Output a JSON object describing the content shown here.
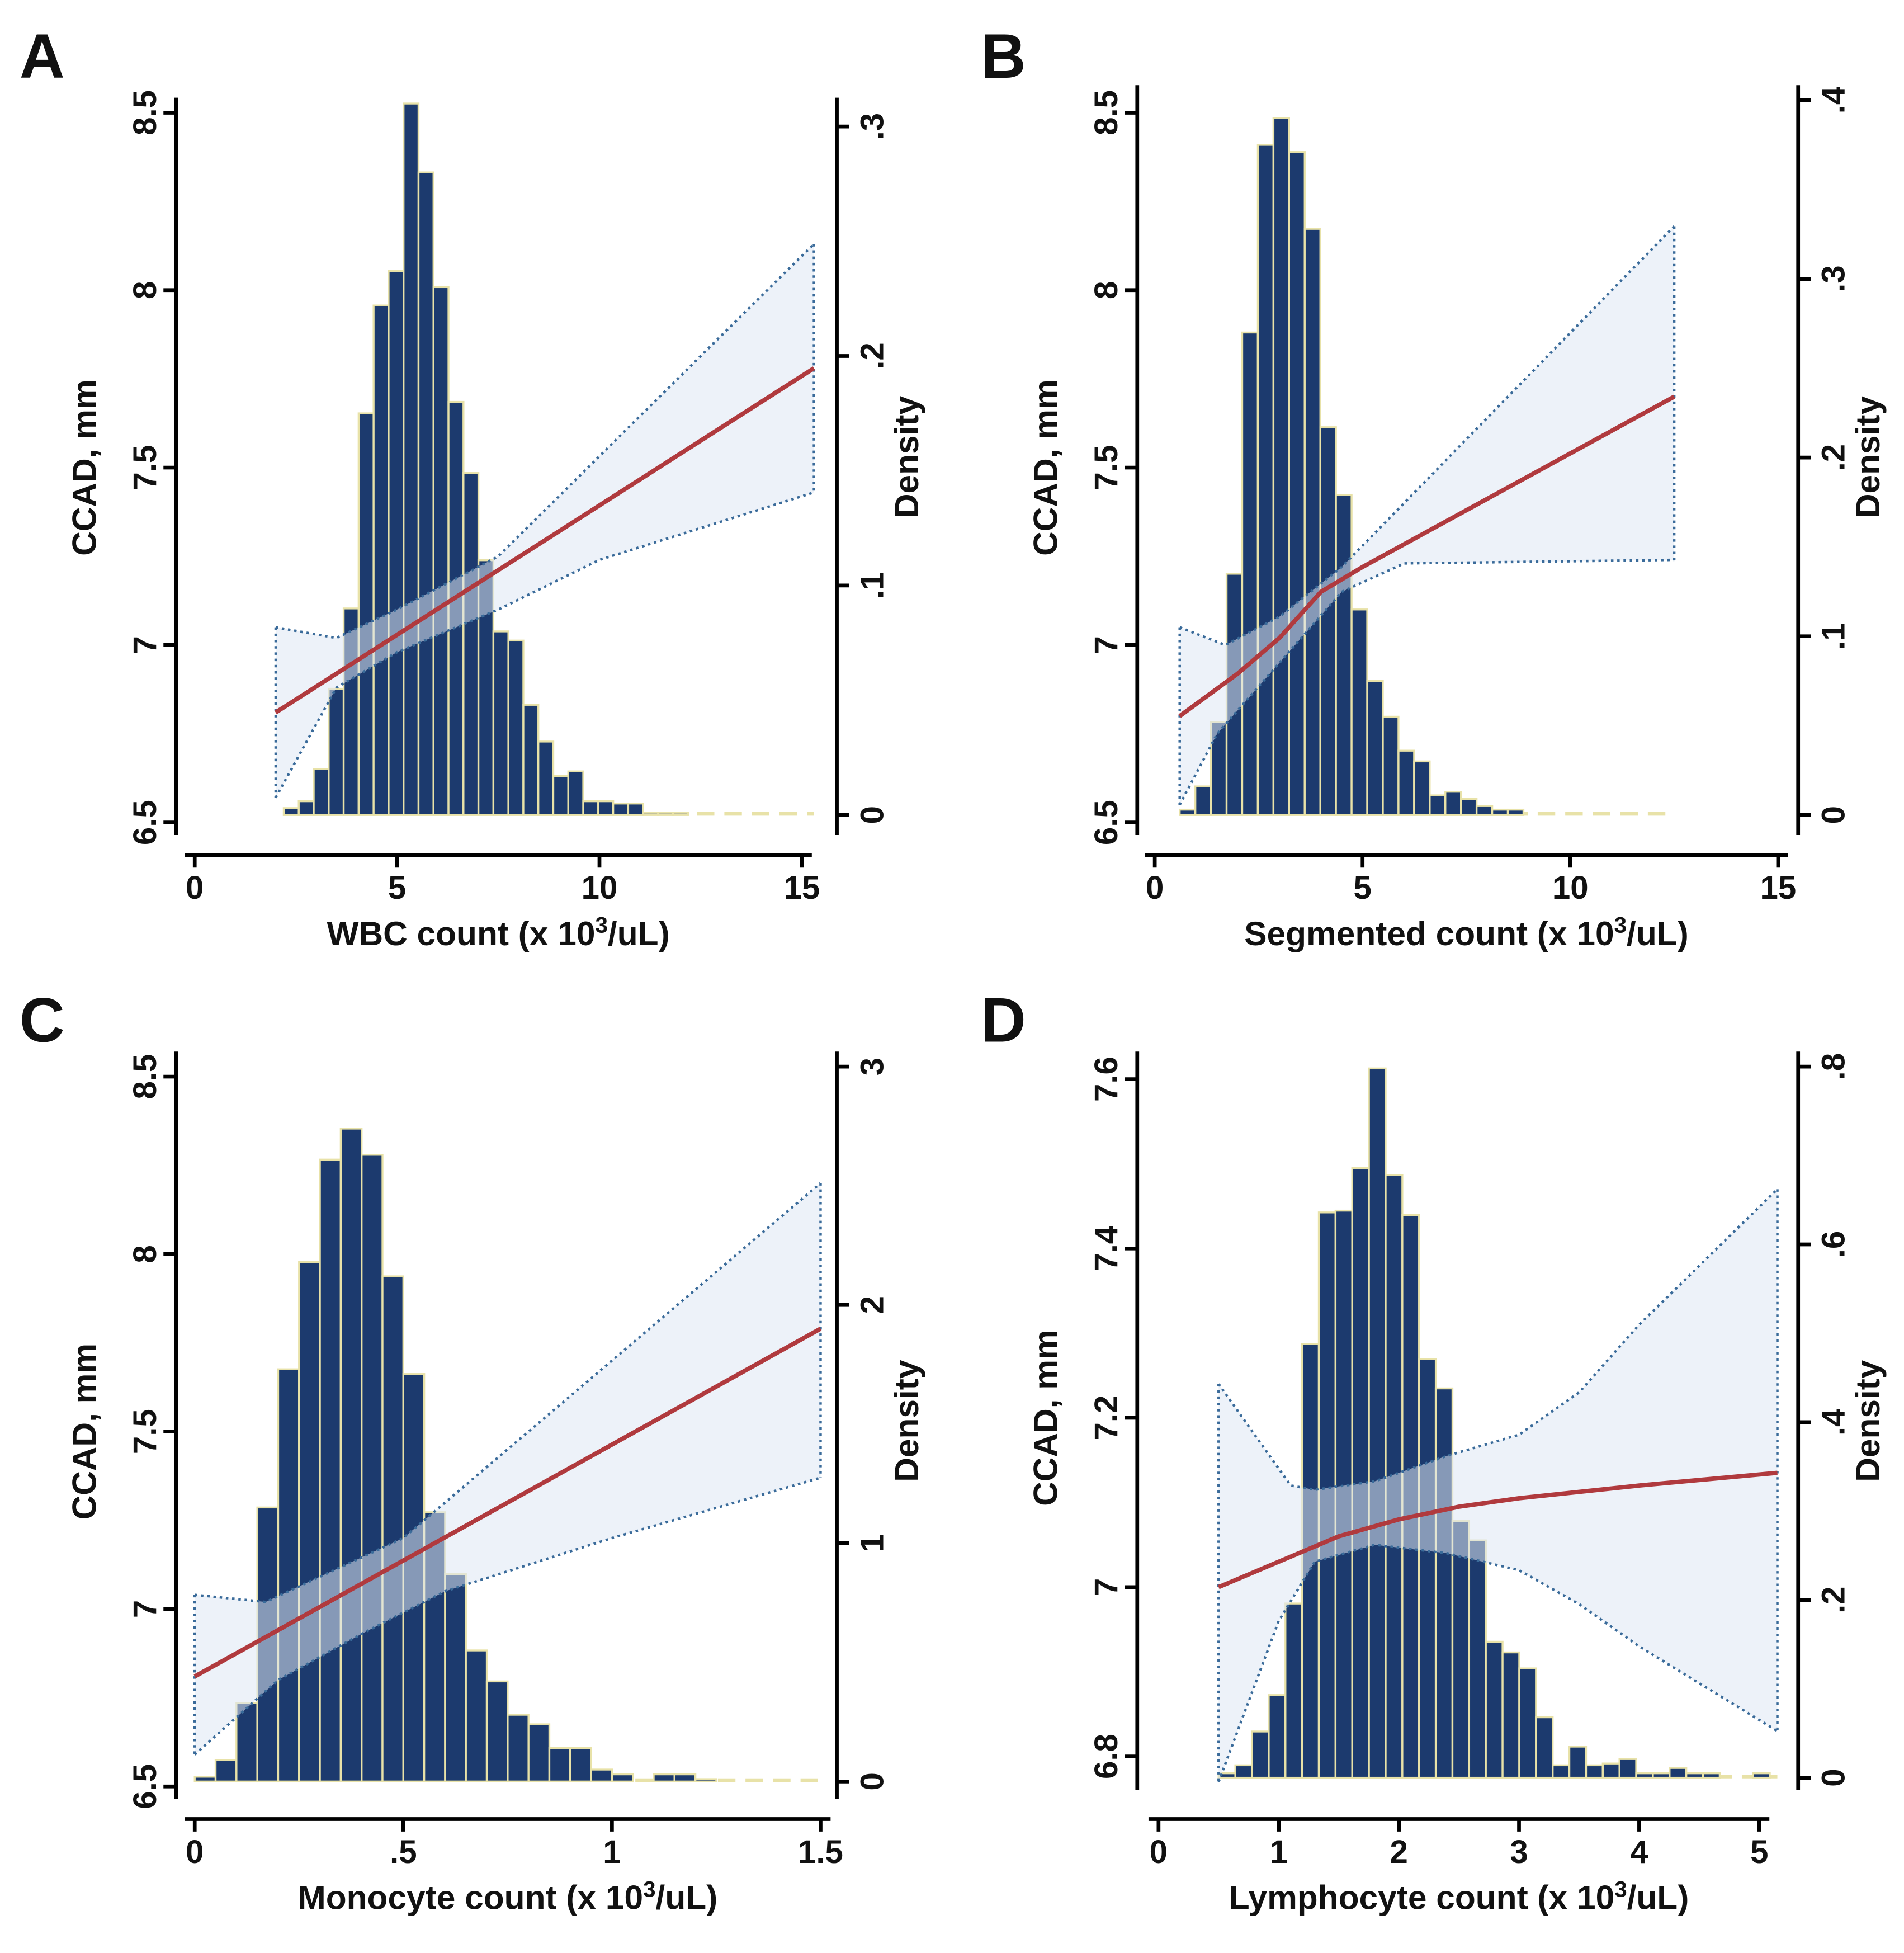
{
  "chart_data": [
    {
      "panel": "A",
      "type": "bar+line",
      "xlabel": {
        "pre": "WBC count (x 10",
        "sup": "3",
        "post": "/uL)"
      },
      "ylabel": "CCAD, mm",
      "y2label": "Density",
      "xlim": [
        0,
        15
      ],
      "xticks": [
        "0",
        "5",
        "10",
        "15"
      ],
      "xtick_values": [
        0,
        5,
        10,
        15
      ],
      "ylim": [
        6.5,
        8.5
      ],
      "yticks": [
        "6.5",
        "7",
        "7.5",
        "8",
        "8.5"
      ],
      "ytick_values": [
        6.5,
        7,
        7.5,
        8,
        8.5
      ],
      "y2lim": [
        0,
        0.3
      ],
      "y2ticks": [
        "0",
        ".1",
        ".2",
        ".3"
      ],
      "y2tick_values": [
        0,
        0.1,
        0.2,
        0.3
      ],
      "histogram": {
        "bin_start": 2.2,
        "bin_width": 0.37,
        "range_end": 15.3,
        "density": [
          0.003,
          0.006,
          0.02,
          0.055,
          0.09,
          0.175,
          0.222,
          0.237,
          0.31,
          0.28,
          0.23,
          0.18,
          0.149,
          0.111,
          0.08,
          0.076,
          0.048,
          0.032,
          0.017,
          0.019,
          0.006,
          0.006,
          0.005,
          0.005,
          0.001,
          0.001,
          0.001
        ]
      },
      "fit": [
        [
          2,
          6.81
        ],
        [
          15.3,
          7.78
        ]
      ],
      "ci_upper": [
        [
          2,
          7.05
        ],
        [
          3.5,
          7.02
        ],
        [
          5,
          7.1
        ],
        [
          7.5,
          7.25
        ],
        [
          15.3,
          8.13
        ]
      ],
      "ci_lower": [
        [
          2,
          6.57
        ],
        [
          3.5,
          6.88
        ],
        [
          5,
          6.98
        ],
        [
          7.5,
          7.1
        ],
        [
          10,
          7.24
        ],
        [
          15.3,
          7.43
        ]
      ]
    },
    {
      "panel": "B",
      "type": "bar+line",
      "xlabel": {
        "pre": "Segmented count (x 10",
        "sup": "3",
        "post": "/uL)"
      },
      "ylabel": "CCAD, mm",
      "y2label": "Density",
      "xlim": [
        0,
        15
      ],
      "xticks": [
        "0",
        "5",
        "10",
        "15"
      ],
      "xtick_values": [
        0,
        5,
        10,
        15
      ],
      "ylim": [
        6.5,
        8.5
      ],
      "yticks": [
        "6.5",
        "7",
        "7.5",
        "8",
        "8.5"
      ],
      "ytick_values": [
        6.5,
        7,
        7.5,
        8,
        8.5
      ],
      "y2lim": [
        0,
        0.4
      ],
      "y2ticks": [
        "0",
        ".1",
        ".2",
        ".3",
        ".4"
      ],
      "y2tick_values": [
        0,
        0.1,
        0.2,
        0.3,
        0.4
      ],
      "histogram": {
        "bin_start": 0.6,
        "bin_width": 0.376,
        "range_end": 12.5,
        "density": [
          0.003,
          0.016,
          0.052,
          0.135,
          0.27,
          0.375,
          0.39,
          0.371,
          0.328,
          0.217,
          0.179,
          0.115,
          0.075,
          0.055,
          0.036,
          0.03,
          0.011,
          0.013,
          0.009,
          0.005,
          0.003,
          0.003
        ]
      },
      "fit": [
        [
          0.6,
          6.8
        ],
        [
          2,
          6.92
        ],
        [
          3,
          7.02
        ],
        [
          4,
          7.15
        ],
        [
          5,
          7.22
        ],
        [
          12.5,
          7.7
        ]
      ],
      "ci_upper": [
        [
          0.6,
          7.05
        ],
        [
          1.7,
          7.0
        ],
        [
          3,
          7.08
        ],
        [
          4.5,
          7.22
        ],
        [
          12.5,
          8.18
        ]
      ],
      "ci_lower": [
        [
          0.6,
          6.55
        ],
        [
          1.5,
          6.75
        ],
        [
          3,
          6.95
        ],
        [
          4.5,
          7.15
        ],
        [
          6,
          7.23
        ],
        [
          12.5,
          7.24
        ]
      ]
    },
    {
      "panel": "C",
      "type": "bar+line",
      "xlabel": {
        "pre": "Monocyte count (x 10",
        "sup": "3",
        "post": "/uL)"
      },
      "ylabel": "CCAD, mm",
      "y2label": "Density",
      "xlim": [
        0,
        1.5
      ],
      "xticks": [
        "0",
        ".5",
        "1",
        "1.5"
      ],
      "xtick_values": [
        0,
        0.5,
        1,
        1.5
      ],
      "ylim": [
        6.5,
        8.5
      ],
      "yticks": [
        "6.5",
        "7",
        "7.5",
        "8",
        "8.5"
      ],
      "ytick_values": [
        6.5,
        7,
        7.5,
        8,
        8.5
      ],
      "y2lim": [
        0,
        3
      ],
      "y2ticks": [
        "0",
        "1",
        "2",
        "3"
      ],
      "y2tick_values": [
        0,
        1,
        2,
        3
      ],
      "histogram": {
        "bin_start": 0,
        "bin_width": 0.05,
        "range_end": 1.5,
        "density": [
          0.02,
          0.09,
          0.33,
          1.15,
          1.73,
          2.18,
          2.61,
          2.74,
          2.63,
          2.12,
          1.71,
          1.13,
          0.87,
          0.55,
          0.42,
          0.28,
          0.24,
          0.14,
          0.14,
          0.05,
          0.03,
          0,
          0.03,
          0.03,
          0.01
        ]
      },
      "fit": [
        [
          0,
          6.81
        ],
        [
          1.5,
          7.79
        ]
      ],
      "ci_upper": [
        [
          0,
          7.04
        ],
        [
          0.17,
          7.02
        ],
        [
          0.5,
          7.2
        ],
        [
          1.5,
          8.2
        ]
      ],
      "ci_lower": [
        [
          0,
          6.59
        ],
        [
          0.2,
          6.8
        ],
        [
          0.4,
          6.93
        ],
        [
          0.6,
          7.05
        ],
        [
          1,
          7.2
        ],
        [
          1.5,
          7.37
        ]
      ]
    },
    {
      "panel": "D",
      "type": "bar+line",
      "xlabel": {
        "pre": "Lymphocyte count (x 10",
        "sup": "3",
        "post": "/uL)"
      },
      "ylabel": "CCAD, mm",
      "y2label": "Density",
      "xlim": [
        0,
        5
      ],
      "xticks": [
        "0",
        "1",
        "2",
        "3",
        "4",
        "5"
      ],
      "xtick_values": [
        0,
        1,
        2,
        3,
        4,
        5
      ],
      "ylim": [
        6.8,
        7.6
      ],
      "yticks": [
        "6.8",
        "7",
        "7.2",
        "7.4",
        "7.6"
      ],
      "ytick_values": [
        6.8,
        7,
        7.2,
        7.4,
        7.6
      ],
      "y2lim": [
        0,
        0.8
      ],
      "y2ticks": [
        "0",
        ".2",
        ".4",
        ".6",
        ".8"
      ],
      "y2tick_values": [
        0,
        0.2,
        0.4,
        0.6,
        0.8
      ],
      "histogram": {
        "bin_start": 0.5,
        "bin_width": 0.139,
        "range_end": 5.15,
        "density": [
          0.005,
          0.014,
          0.052,
          0.093,
          0.196,
          0.488,
          0.636,
          0.638,
          0.686,
          0.798,
          0.678,
          0.633,
          0.471,
          0.438,
          0.289,
          0.267,
          0.153,
          0.141,
          0.123,
          0.068,
          0.014,
          0.035,
          0.014,
          0.016,
          0.021,
          0.005,
          0.005,
          0.011,
          0.005,
          0.005,
          0,
          0,
          0.005
        ]
      },
      "fit": [
        [
          0.5,
          7.0
        ],
        [
          1,
          7.03
        ],
        [
          1.5,
          7.06
        ],
        [
          2,
          7.08
        ],
        [
          2.5,
          7.095
        ],
        [
          3,
          7.105
        ],
        [
          4,
          7.12
        ],
        [
          5.15,
          7.135
        ]
      ],
      "ci_upper": [
        [
          0.5,
          7.24
        ],
        [
          1.1,
          7.12
        ],
        [
          1.3,
          7.115
        ],
        [
          1.8,
          7.125
        ],
        [
          2.4,
          7.155
        ],
        [
          3,
          7.18
        ],
        [
          3.5,
          7.23
        ],
        [
          4,
          7.31
        ],
        [
          5.15,
          7.47
        ]
      ],
      "ci_lower": [
        [
          0.5,
          6.77
        ],
        [
          1.0,
          6.96
        ],
        [
          1.3,
          7.03
        ],
        [
          1.8,
          7.05
        ],
        [
          2.4,
          7.04
        ],
        [
          3,
          7.02
        ],
        [
          3.5,
          6.98
        ],
        [
          4,
          6.93
        ],
        [
          5.15,
          6.83
        ]
      ]
    }
  ],
  "colors": {
    "bar": "#1c3a6e",
    "bar_edge": "#e8e2a8",
    "fit": "#b03a3e",
    "ci_fill": "#dfe7f4",
    "ci_line": "#3a6b9a"
  }
}
